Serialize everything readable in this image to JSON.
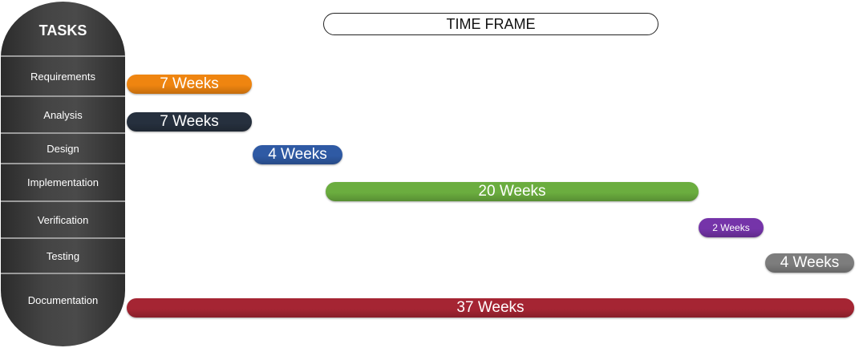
{
  "header": {
    "tasks_label": "TASKS",
    "timeframe_label": "TIME FRAME"
  },
  "tasks": [
    {
      "label": "Requirements"
    },
    {
      "label": "Analysis"
    },
    {
      "label": "Design"
    },
    {
      "label": "Implementation"
    },
    {
      "label": "Verification"
    },
    {
      "label": "Testing"
    },
    {
      "label": "Documentation"
    }
  ],
  "bars": [
    {
      "label": "7 Weeks",
      "color": "#ef8510"
    },
    {
      "label": "7 Weeks",
      "color": "#26303e"
    },
    {
      "label": "4 Weeks",
      "color": "#2f5aa4"
    },
    {
      "label": "20 Weeks",
      "color": "#6bad3f"
    },
    {
      "label": "2 Weeks",
      "color": "#7534a9"
    },
    {
      "label": "4 Weeks",
      "color": "#7d7d7d"
    },
    {
      "label": "37 Weeks",
      "color": "#a52533"
    }
  ]
}
